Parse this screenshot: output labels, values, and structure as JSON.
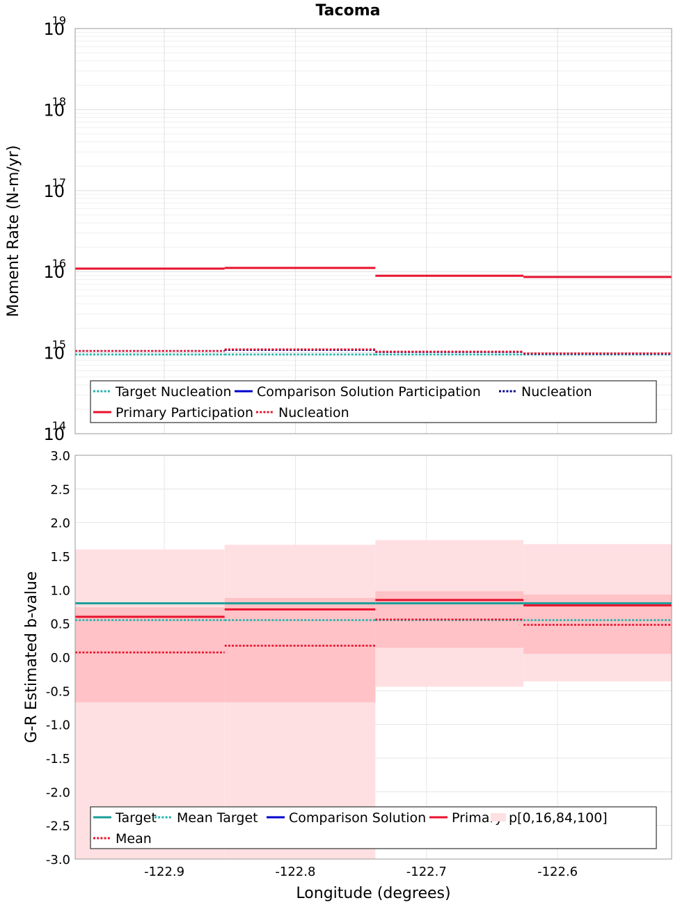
{
  "title": "Tacoma",
  "chart_data": [
    {
      "type": "line",
      "step": true,
      "ylabel": "Moment Rate (N-m/yr)",
      "xlabel": "",
      "y_scale": "log",
      "ylim": [
        100000000000000.0,
        1e+19
      ],
      "xlim": [
        -122.968,
        -122.513
      ],
      "x_edges": [
        -122.968,
        -122.854,
        -122.739,
        -122.626,
        -122.513
      ],
      "grid": true,
      "y_ticks": [
        {
          "base": "10",
          "exp": "14",
          "value": 100000000000000.0
        },
        {
          "base": "10",
          "exp": "15",
          "value": 1000000000000000.0
        },
        {
          "base": "10",
          "exp": "16",
          "value": 1e+16
        },
        {
          "base": "10",
          "exp": "17",
          "value": 1e+17
        },
        {
          "base": "10",
          "exp": "18",
          "value": 1e+18
        },
        {
          "base": "10",
          "exp": "19",
          "value": 1e+19
        }
      ],
      "series": [
        {
          "name": "Target Nucleation",
          "color": "#20b2aa",
          "dash": "dotted",
          "values": [
            950000000000000.0,
            950000000000000.0,
            950000000000000.0,
            950000000000000.0
          ]
        },
        {
          "name": "Comparison Solution Participation",
          "color": "#0000cd",
          "dash": "solid",
          "values": []
        },
        {
          "name": "Nucleation",
          "color": "#00008b",
          "dash": "dotted",
          "values": [
            1050000000000000.0,
            1080000000000000.0,
            1020000000000000.0,
            970000000000000.0
          ]
        },
        {
          "name": "Primary Participation",
          "color": "#e8112d",
          "dash": "solid",
          "values": [
            1.09e+16,
            1.11e+16,
            8900000000000000.0,
            8600000000000000.0
          ]
        },
        {
          "name": "Nucleation",
          "color": "#e8112d",
          "dash": "dotted",
          "values": [
            1050000000000000.0,
            1100000000000000.0,
            1030000000000000.0,
            980000000000000.0
          ]
        }
      ],
      "legend": {
        "placement": "bottom",
        "rows": [
          [
            "Target Nucleation",
            "Comparison Solution Participation",
            "Nucleation"
          ],
          [
            "Primary Participation",
            "Nucleation"
          ]
        ]
      }
    },
    {
      "type": "line",
      "step": true,
      "ylabel": "G-R Estimated b-value",
      "xlabel": "Longitude (degrees)",
      "ylim": [
        -3.0,
        3.0
      ],
      "xlim": [
        -122.968,
        -122.513
      ],
      "x_edges": [
        -122.968,
        -122.854,
        -122.739,
        -122.626,
        -122.513
      ],
      "grid": true,
      "y_ticks": [
        "-3.0",
        "-2.5",
        "-2.0",
        "-1.5",
        "-1.0",
        "-0.5",
        "0.0",
        "0.5",
        "1.0",
        "1.5",
        "2.0",
        "2.5",
        "3.0"
      ],
      "x_ticks": [
        "-122.9",
        "-122.8",
        "-122.7",
        "-122.6"
      ],
      "series": [
        {
          "name": "Target",
          "color": "#1a9e9a",
          "dash": "solid",
          "values": [
            0.8,
            0.8,
            0.8,
            0.8
          ]
        },
        {
          "name": "Mean Target",
          "color": "#20b2aa",
          "dash": "dotted",
          "values": [
            0.55,
            0.55,
            0.55,
            0.55
          ]
        },
        {
          "name": "Comparison Solution",
          "color": "#0000cd",
          "dash": "solid",
          "values": []
        },
        {
          "name": "Primary",
          "color": "#e8112d",
          "dash": "solid",
          "values": [
            0.6,
            0.71,
            0.85,
            0.77
          ]
        },
        {
          "name": "Mean",
          "color": "#e8112d",
          "dash": "dotted",
          "values": [
            0.07,
            0.17,
            0.56,
            0.48
          ]
        }
      ],
      "bands": {
        "name": "p[0,16,84,100]",
        "outer_color": "#ffe0e2",
        "inner_color": "#ffc2c6",
        "p0": [
          -3.0,
          -3.0,
          -0.44,
          -0.36
        ],
        "p16": [
          -0.67,
          -0.67,
          0.14,
          0.05
        ],
        "p84": [
          0.74,
          0.88,
          0.98,
          0.93
        ],
        "p100": [
          1.6,
          1.67,
          1.74,
          1.68
        ]
      },
      "legend": {
        "placement": "bottom",
        "rows": [
          [
            "Target",
            "Mean Target",
            "Comparison Solution",
            "Primary",
            "p[0,16,84,100]"
          ],
          [
            "Mean"
          ]
        ]
      }
    }
  ]
}
